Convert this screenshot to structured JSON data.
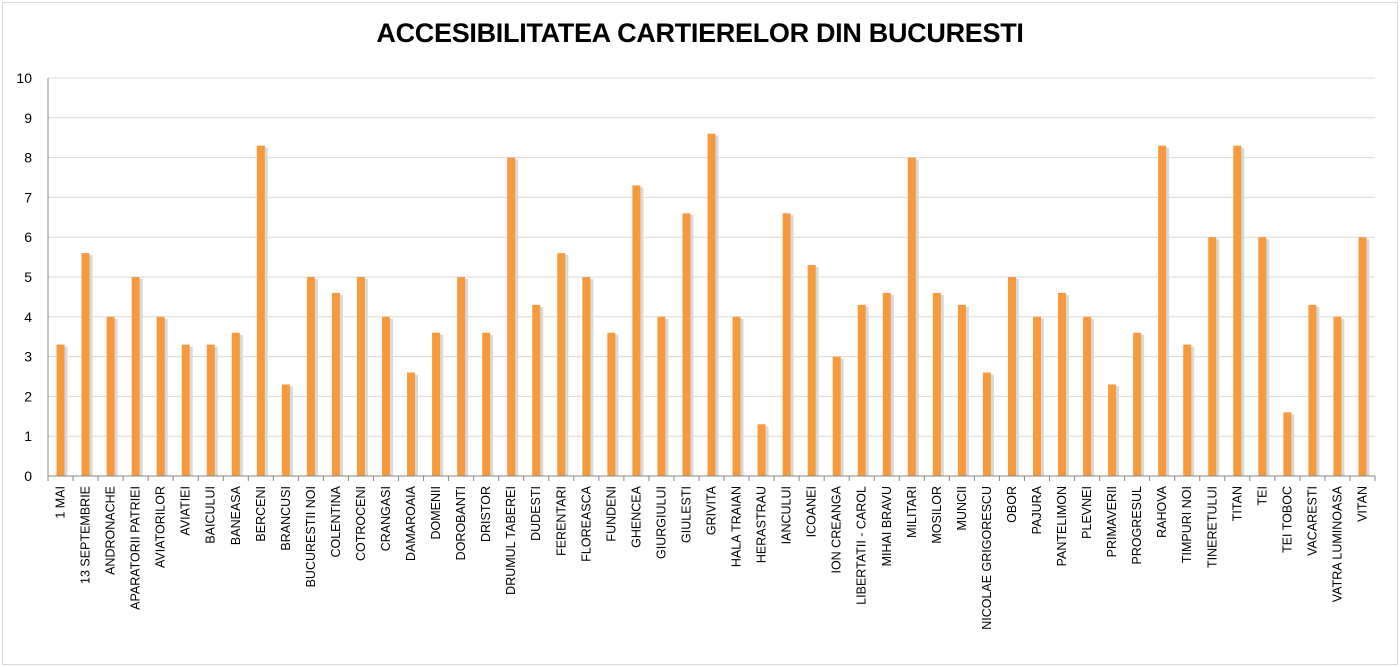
{
  "colors": {
    "bar": "#F79A3D",
    "bar_shadow": "#D9D9D9",
    "grid": "#D9D9D9",
    "axis": "#868686"
  },
  "chart_data": {
    "type": "bar",
    "title": "ACCESIBILITATEA CARTIERELOR DIN BUCURESTI",
    "xlabel": "",
    "ylabel": "",
    "ylim": [
      0,
      10
    ],
    "yticks": [
      "0",
      "1",
      "2",
      "3",
      "4",
      "5",
      "6",
      "7",
      "8",
      "9",
      "10"
    ],
    "grid": true,
    "legend": "none",
    "categories": [
      "1 MAI",
      "13 SEPTEMBRIE",
      "ANDRONACHE",
      "APARATORII PATRIEI",
      "AVIATORILOR",
      "AVIATIEI",
      "BAICULUI",
      "BANEASA",
      "BERCENI",
      "BRANCUSI",
      "BUCURESTII NOI",
      "COLENTINA",
      "COTROCENI",
      "CRANGASI",
      "DAMAROAIA",
      "DOMENII",
      "DOROBANTI",
      "DRISTOR",
      "DRUMUL TABEREI",
      "DUDESTI",
      "FERENTARI",
      "FLOREASCA",
      "FUNDENI",
      "GHENCEA",
      "GIURGIULUI",
      "GIULESTI",
      "GRIVITA",
      "HALA TRAIAN",
      "HERASTRAU",
      "IANCULUI",
      "ICOANEI",
      "ION CREANGA",
      "LIBERTATII - CAROL",
      "MIHAI BRAVU",
      "MILITARI",
      "MOSILOR",
      "MUNCII",
      "NICOLAE GRIGORESCU",
      "OBOR",
      "PAJURA",
      "PANTELIMON",
      "PLEVNEI",
      "PRIMAVERII",
      "PROGRESUL",
      "RAHOVA",
      "TIMPURI NOI",
      "TINERETULUI",
      "TITAN",
      "TEI",
      "TEI TOBOC",
      "VACARESTI",
      "VATRA LUMINOASA",
      "VITAN"
    ],
    "values": [
      3.3,
      5.6,
      4,
      5,
      4,
      3.3,
      3.3,
      3.6,
      8.3,
      2.3,
      5,
      4.6,
      5,
      4,
      2.6,
      3.6,
      5,
      3.6,
      8,
      4.3,
      5.6,
      5,
      3.6,
      7.3,
      4,
      6.6,
      8.6,
      4,
      1.3,
      6.6,
      5.3,
      3,
      4.3,
      4.6,
      8,
      4.6,
      4.3,
      2.6,
      5,
      4,
      4.6,
      4,
      2.3,
      3.6,
      8.3,
      3.3,
      6,
      8.3,
      6,
      1.6,
      4.3,
      4,
      6
    ]
  }
}
